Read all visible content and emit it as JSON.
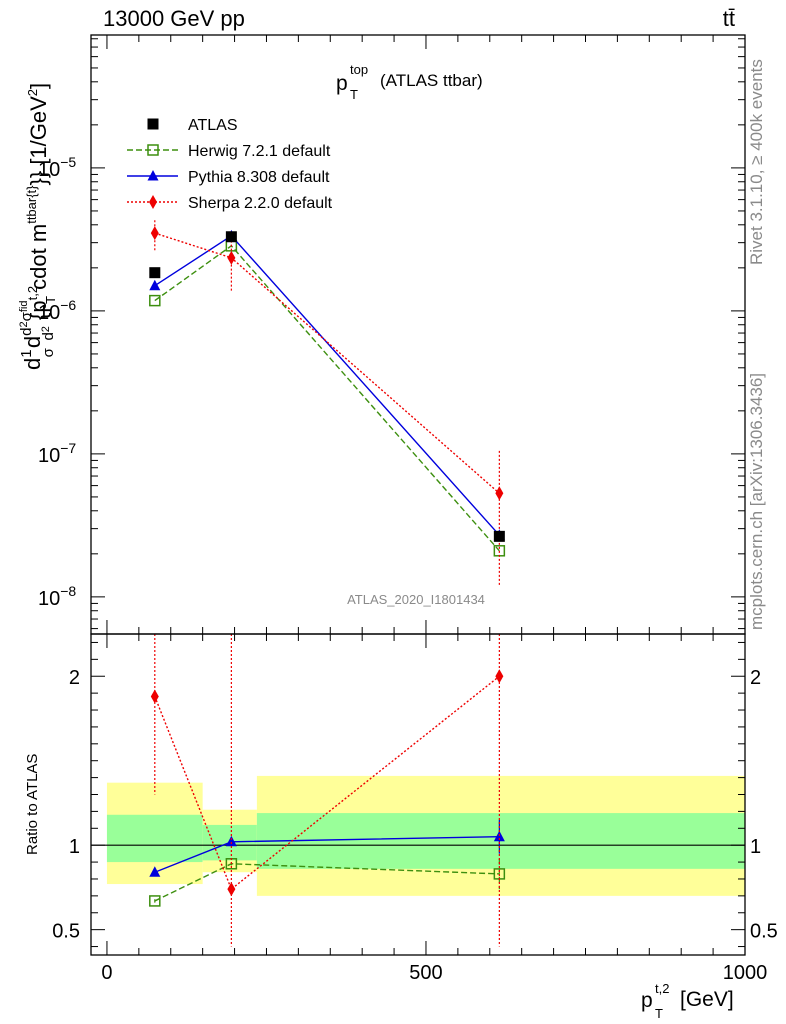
{
  "header": {
    "energy_label": "13000 GeV pp",
    "process_label": "tt̄"
  },
  "side": {
    "rivet_label": "Rivet 3.1.10, ≥ 400k events",
    "site_label": "mcplots.cern.ch [arXiv:1306.3436]"
  },
  "chart_data": [
    {
      "type": "line",
      "title": "p_T^top (ATLAS ttbar)",
      "title_main": "p",
      "title_sup": "top",
      "title_sub": "T",
      "title_rest": "(ATLAS ttbar)",
      "watermark": "ATLAS_2020_I1801434",
      "ylabel": "d1dσ d²σ^fid d²{p_T^t,2 cdot m^ttbar{t}}} [1/GeV²]",
      "yscale": "log",
      "ylim": [
        5.5e-09,
        8.5e-05
      ],
      "xlim": [
        -25,
        1000
      ],
      "yticks": [
        {
          "v": 1e-08,
          "base": "10",
          "exp": "−8"
        },
        {
          "v": 1e-07,
          "base": "10",
          "exp": "−7"
        },
        {
          "v": 1e-06,
          "base": "10",
          "exp": "−6"
        },
        {
          "v": 1e-05,
          "base": "10",
          "exp": "−5"
        }
      ],
      "legend_position": "top-left",
      "series": [
        {
          "name": "ATLAS",
          "color": "#000000",
          "marker": "square-filled",
          "line": "none",
          "x": [
            75,
            195,
            615
          ],
          "y": [
            1.85e-06,
            3.3e-06,
            2.65e-08
          ],
          "err": [
            0,
            0,
            0
          ]
        },
        {
          "name": "Herwig 7.2.1 default",
          "color": "#3d8f0f",
          "marker": "square-open",
          "line": "dashed",
          "x": [
            75,
            195,
            615
          ],
          "y": [
            1.18e-06,
            2.85e-06,
            2.1e-08
          ],
          "err": [
            0,
            0,
            0
          ]
        },
        {
          "name": "Pythia 8.308 default",
          "color": "#0000dd",
          "marker": "triangle",
          "line": "solid",
          "x": [
            75,
            195,
            615
          ],
          "y": [
            1.5e-06,
            3.35e-06,
            2.7e-08
          ],
          "err": [
            0,
            0,
            0
          ]
        },
        {
          "name": "Sherpa 2.2.0 default",
          "color": "#ee0000",
          "marker": "diamond",
          "line": "dotted",
          "x": [
            75,
            195,
            615
          ],
          "y": [
            3.5e-06,
            2.35e-06,
            5.3e-08
          ],
          "err_lo": [
            2.6e-06,
            1.35e-06,
            1.2e-08
          ],
          "err_hi": [
            4.3e-06,
            3.1e-06,
            1.05e-07
          ]
        }
      ]
    },
    {
      "type": "line",
      "title": "",
      "ylabel": "Ratio to ATLAS",
      "xlabel": "p_T^t,2 [GeV]",
      "xlabel_main": "p",
      "xlabel_sup": "t,2",
      "xlabel_sub": "T",
      "xlabel_rest": "[GeV]",
      "xlim": [
        -25,
        1000
      ],
      "ylim": [
        0.35,
        2.25
      ],
      "yticks": [
        0.5,
        1,
        2
      ],
      "xticks": [
        0,
        500,
        1000
      ],
      "reference": 1,
      "bands": [
        {
          "x0": 0,
          "x1": 150,
          "yellow": [
            0.77,
            1.37
          ],
          "green": [
            0.9,
            1.18
          ]
        },
        {
          "x0": 150,
          "x1": 235,
          "yellow": [
            0.84,
            1.21
          ],
          "green": [
            0.91,
            1.12
          ]
        },
        {
          "x0": 235,
          "x1": 1000,
          "yellow": [
            0.7,
            1.41
          ],
          "green": [
            0.86,
            1.19
          ]
        }
      ],
      "series": [
        {
          "name": "Herwig 7.2.1 default",
          "color": "#3d8f0f",
          "marker": "square-open",
          "line": "dashed",
          "x": [
            75,
            195,
            615
          ],
          "y": [
            0.67,
            0.89,
            0.83
          ],
          "err_lo": [
            0.66,
            0.88,
            0.74
          ],
          "err_hi": [
            0.68,
            0.9,
            0.92
          ]
        },
        {
          "name": "Pythia 8.308 default",
          "color": "#0000dd",
          "marker": "triangle",
          "line": "solid",
          "x": [
            75,
            195,
            615
          ],
          "y": [
            0.84,
            1.02,
            1.05
          ],
          "err_lo": [
            0.82,
            1.01,
            0.95
          ],
          "err_hi": [
            0.86,
            1.03,
            1.15
          ]
        },
        {
          "name": "Sherpa 2.2.0 default",
          "color": "#ee0000",
          "marker": "diamond",
          "line": "dotted",
          "x": [
            75,
            195,
            615
          ],
          "y": [
            1.88,
            0.74,
            2.0
          ],
          "err_lo": [
            1.3,
            0.4,
            0.4
          ],
          "err_hi": [
            2.25,
            2.25,
            2.25
          ]
        }
      ]
    }
  ]
}
